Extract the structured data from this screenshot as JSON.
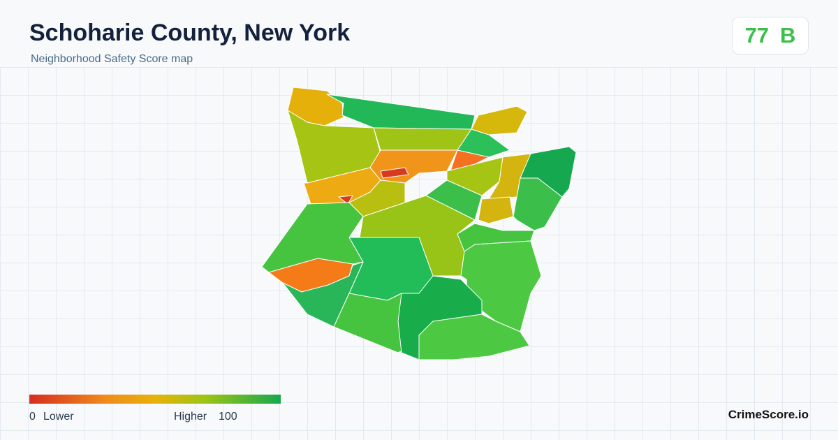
{
  "header": {
    "title": "Schoharie County, New York",
    "subtitle": "Neighborhood Safety Score map"
  },
  "score": {
    "value": 77,
    "grade": "B"
  },
  "legend": {
    "min": 0,
    "min_label": "Lower",
    "max_label": "Higher",
    "max": 100
  },
  "brand": "CrimeScore.io"
}
